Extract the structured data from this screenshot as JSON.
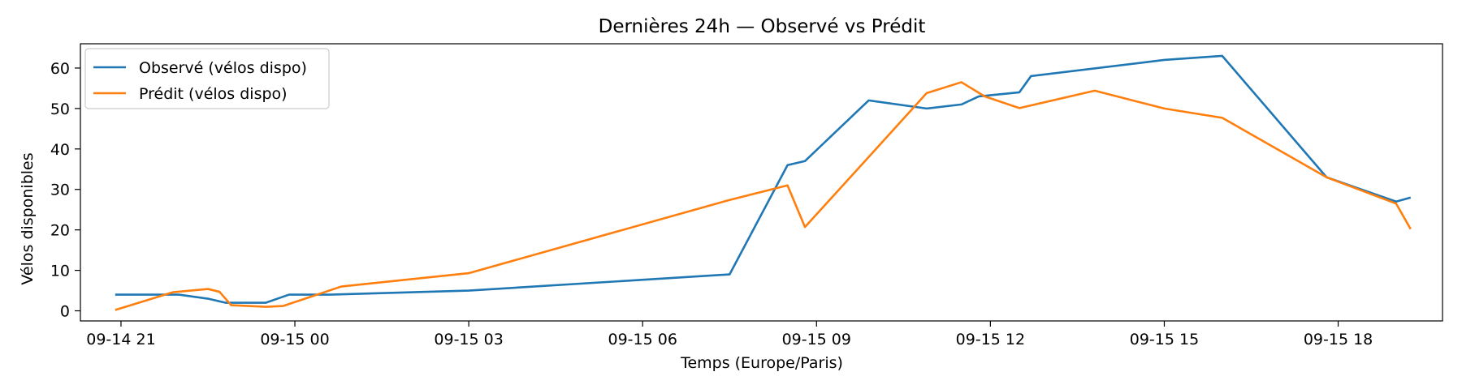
{
  "chart_data": {
    "type": "line",
    "title": "Dernières 24h — Observé vs Prédit",
    "xlabel": "Temps (Europe/Paris)",
    "ylabel": "Vélos disponibles",
    "x_axis_type": "datetime",
    "xlim": [
      "2024-09-14 20:18",
      "2024-09-15 19:48"
    ],
    "ylim": [
      -2.5,
      66.0
    ],
    "x_ticks": [
      {
        "t": "2024-09-14 21:00",
        "label": "09-14 21"
      },
      {
        "t": "2024-09-15 00:00",
        "label": "09-15 00"
      },
      {
        "t": "2024-09-15 03:00",
        "label": "09-15 03"
      },
      {
        "t": "2024-09-15 06:00",
        "label": "09-15 06"
      },
      {
        "t": "2024-09-15 09:00",
        "label": "09-15 09"
      },
      {
        "t": "2024-09-15 12:00",
        "label": "09-15 12"
      },
      {
        "t": "2024-09-15 15:00",
        "label": "09-15 15"
      },
      {
        "t": "2024-09-15 18:00",
        "label": "09-15 18"
      }
    ],
    "y_ticks": [
      0,
      10,
      20,
      30,
      40,
      50,
      60
    ],
    "grid": false,
    "legend_position": "top-left",
    "series": [
      {
        "name": "Observé (vélos dispo)",
        "color": "#1f77b4",
        "points": [
          [
            "2024-09-14 20:54",
            4
          ],
          [
            "2024-09-14 21:30",
            4
          ],
          [
            "2024-09-14 22:00",
            4
          ],
          [
            "2024-09-14 22:30",
            3
          ],
          [
            "2024-09-14 22:48",
            2
          ],
          [
            "2024-09-14 23:00",
            2
          ],
          [
            "2024-09-14 23:30",
            2
          ],
          [
            "2024-09-14 23:54",
            4
          ],
          [
            "2024-09-15 00:24",
            4
          ],
          [
            "2024-09-15 00:36",
            4
          ],
          [
            "2024-09-15 03:00",
            5
          ],
          [
            "2024-09-15 07:30",
            9
          ],
          [
            "2024-09-15 08:30",
            36
          ],
          [
            "2024-09-15 08:48",
            37
          ],
          [
            "2024-09-15 09:54",
            52
          ],
          [
            "2024-09-15 10:54",
            50
          ],
          [
            "2024-09-15 11:30",
            51
          ],
          [
            "2024-09-15 11:48",
            53
          ],
          [
            "2024-09-15 12:30",
            54
          ],
          [
            "2024-09-15 12:42",
            58
          ],
          [
            "2024-09-15 15:00",
            62
          ],
          [
            "2024-09-15 16:00",
            63
          ],
          [
            "2024-09-15 17:48",
            33
          ],
          [
            "2024-09-15 19:00",
            27
          ],
          [
            "2024-09-15 19:15",
            28
          ]
        ]
      },
      {
        "name": "Prédit (vélos dispo)",
        "color": "#ff7f0e",
        "points": [
          [
            "2024-09-14 20:54",
            0.2
          ],
          [
            "2024-09-14 21:54",
            4.6
          ],
          [
            "2024-09-14 22:30",
            5.4
          ],
          [
            "2024-09-14 22:42",
            4.7
          ],
          [
            "2024-09-14 22:54",
            1.4
          ],
          [
            "2024-09-14 23:30",
            1.0
          ],
          [
            "2024-09-14 23:48",
            1.2
          ],
          [
            "2024-09-15 00:48",
            6.0
          ],
          [
            "2024-09-15 03:00",
            9.3
          ],
          [
            "2024-09-15 07:30",
            27.4
          ],
          [
            "2024-09-15 08:30",
            31.0
          ],
          [
            "2024-09-15 08:48",
            20.7
          ],
          [
            "2024-09-15 09:54",
            38.0
          ],
          [
            "2024-09-15 10:54",
            53.8
          ],
          [
            "2024-09-15 11:30",
            56.5
          ],
          [
            "2024-09-15 11:54",
            53.0
          ],
          [
            "2024-09-15 12:30",
            50.1
          ],
          [
            "2024-09-15 13:48",
            54.4
          ],
          [
            "2024-09-15 15:00",
            50.0
          ],
          [
            "2024-09-15 16:00",
            47.7
          ],
          [
            "2024-09-15 17:48",
            33.0
          ],
          [
            "2024-09-15 19:00",
            26.5
          ],
          [
            "2024-09-15 19:15",
            20.2
          ]
        ]
      }
    ]
  }
}
